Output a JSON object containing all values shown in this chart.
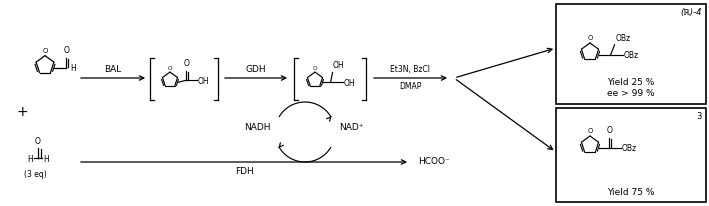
{
  "figsize": [
    7.09,
    2.06
  ],
  "dpi": 100,
  "bg_color": "#ffffff",
  "labels": {
    "BAL": "BAL",
    "GDH": "GDH",
    "FDH": "FDH",
    "NADH": "NADH",
    "NAD+": "NAD⁺",
    "HCOO-": "HCOO⁻",
    "Et3N_BzCl": "Et3N, BzCl",
    "DMAP": "DMAP",
    "three_eq": "(3 eq)",
    "R4": "(ℝ)-4",
    "yield_top": "Yield 25 %",
    "ee": "ee > 99 %",
    "yield_bottom": "Yield 75 %",
    "compound3": "3"
  },
  "fs": 6.5,
  "fs_s": 5.5,
  "fs_label": 7.0
}
